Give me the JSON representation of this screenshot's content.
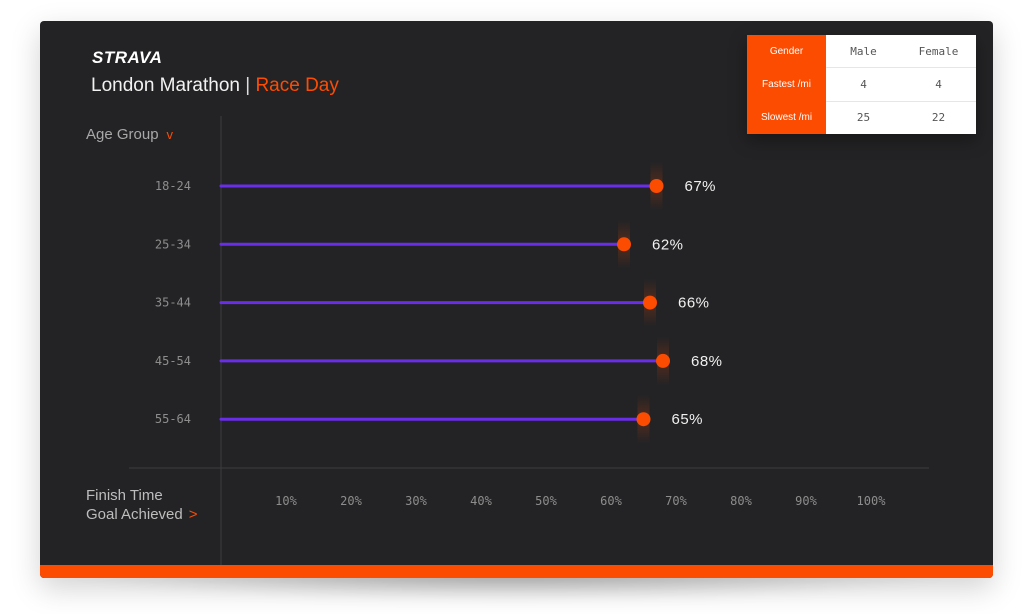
{
  "brand": {
    "logo": "STRAVA"
  },
  "title": {
    "event": "London Marathon",
    "separator": "|",
    "highlight": "Race Day"
  },
  "y_selector": {
    "label": "Age Group",
    "icon": "chevron-down-icon"
  },
  "x_selector": {
    "line1": "Finish Time",
    "line2": "Goal Achieved",
    "icon": "chevron-right-icon"
  },
  "gender_table": {
    "header_label": "Gender",
    "columns": [
      "Male",
      "Female"
    ],
    "rows": [
      {
        "label": "Fastest /mi",
        "values": [
          "4",
          "4"
        ]
      },
      {
        "label": "Slowest /mi",
        "values": [
          "25",
          "22"
        ]
      }
    ]
  },
  "colors": {
    "accent": "#fc4c02",
    "line": "#6a2ee8",
    "background": "#232325"
  },
  "chart_data": {
    "type": "bar",
    "orientation": "horizontal",
    "style": "lollipop",
    "categories": [
      "18-24",
      "25-34",
      "35-44",
      "45-54",
      "55-64"
    ],
    "values": [
      67,
      62,
      66,
      68,
      65
    ],
    "value_labels": [
      "67%",
      "62%",
      "66%",
      "68%",
      "65%"
    ],
    "x_ticks": [
      "10%",
      "20%",
      "30%",
      "40%",
      "50%",
      "60%",
      "70%",
      "80%",
      "90%",
      "100%"
    ],
    "xlim": [
      0,
      100
    ],
    "xlabel": "Finish Time Goal Achieved",
    "ylabel": "Age Group",
    "grid": false
  }
}
